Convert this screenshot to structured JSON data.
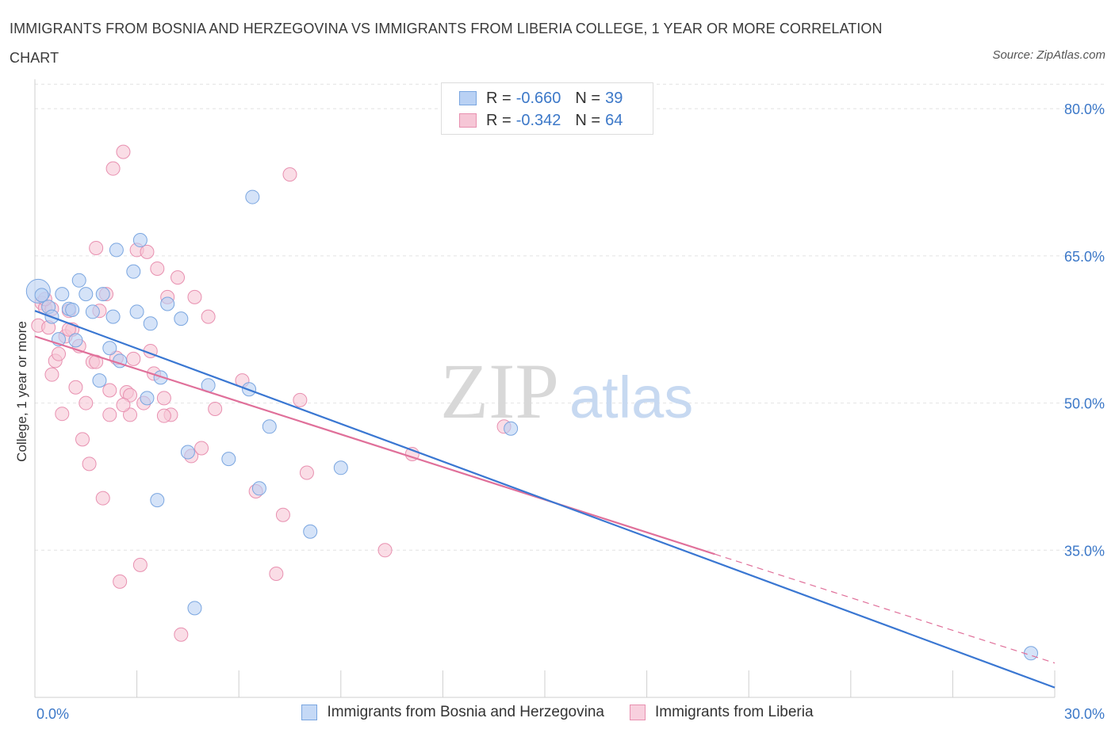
{
  "title": "IMMIGRANTS FROM BOSNIA AND HERZEGOVINA VS IMMIGRANTS FROM LIBERIA COLLEGE, 1 YEAR OR MORE CORRELATION CHART",
  "source": "Source: ZipAtlas.com",
  "watermark": {
    "zip": "ZIP",
    "atlas": "atlas"
  },
  "legend": {
    "rows": [
      {
        "r_label": "R =",
        "r_value": "-0.660",
        "n_label": "N =",
        "n_value": "39"
      },
      {
        "r_label": "R =",
        "r_value": "-0.342",
        "n_label": "N =",
        "n_value": "64"
      }
    ]
  },
  "chart_data": {
    "type": "scatter",
    "ylabel": "College, 1 year or more",
    "xlim": [
      0,
      30
    ],
    "ylim": [
      20,
      83
    ],
    "x_tick_labels": [
      "0.0%",
      "30.0%"
    ],
    "y_ticks": [
      35,
      50,
      65,
      80
    ],
    "y_tick_labels": [
      "35.0%",
      "50.0%",
      "65.0%",
      "80.0%"
    ],
    "grid": true,
    "legend_position": "top-center",
    "colors": {
      "blue_fill": "#b9d1f4",
      "blue_stroke": "#7aa6e0",
      "blue_line": "#3a77d2",
      "pink_fill": "#f6c6d6",
      "pink_stroke": "#e890b0",
      "pink_line": "#e0709a",
      "tick_text": "#3c78c8",
      "grid": "#e2e2e2"
    },
    "series": [
      {
        "name": "Immigrants from Bosnia and Herzegovina",
        "color": "#7aa6e0",
        "points": [
          [
            0.1,
            61.4
          ],
          [
            0.2,
            61.0
          ],
          [
            0.4,
            59.8
          ],
          [
            0.5,
            58.8
          ],
          [
            0.7,
            56.5
          ],
          [
            0.8,
            61.1
          ],
          [
            1.0,
            59.6
          ],
          [
            1.2,
            56.4
          ],
          [
            1.3,
            62.5
          ],
          [
            1.5,
            61.1
          ],
          [
            1.7,
            59.3
          ],
          [
            1.9,
            52.3
          ],
          [
            2.0,
            61.1
          ],
          [
            2.2,
            55.6
          ],
          [
            2.3,
            58.8
          ],
          [
            2.4,
            65.6
          ],
          [
            2.5,
            54.3
          ],
          [
            2.9,
            63.4
          ],
          [
            3.0,
            59.3
          ],
          [
            3.1,
            66.6
          ],
          [
            3.3,
            50.5
          ],
          [
            3.4,
            58.1
          ],
          [
            3.6,
            40.1
          ],
          [
            3.7,
            52.6
          ],
          [
            3.9,
            60.1
          ],
          [
            4.3,
            58.6
          ],
          [
            4.5,
            45.0
          ],
          [
            4.7,
            29.1
          ],
          [
            5.1,
            51.8
          ],
          [
            5.7,
            44.3
          ],
          [
            6.3,
            51.4
          ],
          [
            6.4,
            71.0
          ],
          [
            6.6,
            41.3
          ],
          [
            6.9,
            47.6
          ],
          [
            8.1,
            36.9
          ],
          [
            9.0,
            43.4
          ],
          [
            14.0,
            47.4
          ],
          [
            29.3,
            24.5
          ],
          [
            1.1,
            59.5
          ]
        ],
        "trend": {
          "x": [
            0,
            30
          ],
          "y": [
            59.4,
            21.0
          ]
        }
      },
      {
        "name": "Immigrants from Liberia",
        "color": "#e890b0",
        "points": [
          [
            0.1,
            57.9
          ],
          [
            0.2,
            60.2
          ],
          [
            0.3,
            59.7
          ],
          [
            0.4,
            57.7
          ],
          [
            0.5,
            52.9
          ],
          [
            0.6,
            54.3
          ],
          [
            0.7,
            55.0
          ],
          [
            0.8,
            48.9
          ],
          [
            0.9,
            56.8
          ],
          [
            1.0,
            59.4
          ],
          [
            1.1,
            57.5
          ],
          [
            1.2,
            51.6
          ],
          [
            1.3,
            55.8
          ],
          [
            1.4,
            46.3
          ],
          [
            1.5,
            50.0
          ],
          [
            1.6,
            43.8
          ],
          [
            1.7,
            54.2
          ],
          [
            1.8,
            65.8
          ],
          [
            1.9,
            59.4
          ],
          [
            2.0,
            40.3
          ],
          [
            2.1,
            61.1
          ],
          [
            2.2,
            51.3
          ],
          [
            2.2,
            48.8
          ],
          [
            2.3,
            73.9
          ],
          [
            2.4,
            54.6
          ],
          [
            2.5,
            31.8
          ],
          [
            2.6,
            75.6
          ],
          [
            2.7,
            51.1
          ],
          [
            2.8,
            50.8
          ],
          [
            2.8,
            48.8
          ],
          [
            2.9,
            54.5
          ],
          [
            3.0,
            65.6
          ],
          [
            3.1,
            33.5
          ],
          [
            3.2,
            50.0
          ],
          [
            3.3,
            65.4
          ],
          [
            3.4,
            55.3
          ],
          [
            3.5,
            53.0
          ],
          [
            3.6,
            63.7
          ],
          [
            3.8,
            50.5
          ],
          [
            3.9,
            60.8
          ],
          [
            4.0,
            48.8
          ],
          [
            4.2,
            62.8
          ],
          [
            4.3,
            26.4
          ],
          [
            4.6,
            44.6
          ],
          [
            4.7,
            60.8
          ],
          [
            4.9,
            45.4
          ],
          [
            5.1,
            58.8
          ],
          [
            5.3,
            49.4
          ],
          [
            6.1,
            52.3
          ],
          [
            6.5,
            41.0
          ],
          [
            7.1,
            32.6
          ],
          [
            7.3,
            38.6
          ],
          [
            7.5,
            73.3
          ],
          [
            7.8,
            50.3
          ],
          [
            8.0,
            42.9
          ],
          [
            10.3,
            35.0
          ],
          [
            11.1,
            44.8
          ],
          [
            13.8,
            47.6
          ],
          [
            1.0,
            57.5
          ],
          [
            0.5,
            59.6
          ],
          [
            0.3,
            60.6
          ],
          [
            1.8,
            54.2
          ],
          [
            2.6,
            49.8
          ],
          [
            3.8,
            48.7
          ]
        ],
        "trend": {
          "x": [
            0,
            20
          ],
          "y": [
            56.8,
            34.6
          ]
        },
        "trend_dashed": {
          "x": [
            20,
            30
          ],
          "y": [
            34.6,
            23.5
          ]
        }
      }
    ]
  }
}
